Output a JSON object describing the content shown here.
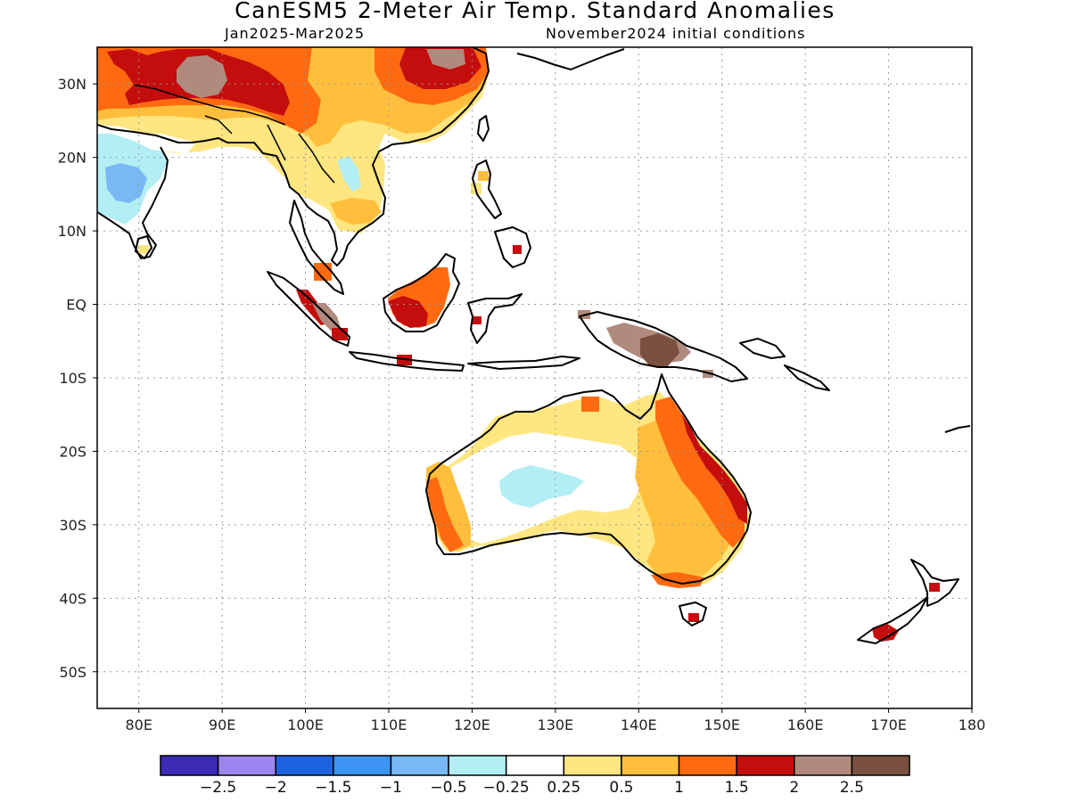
{
  "title": "CanESM5 2-Meter Air Temp. Standard Anomalies",
  "subtitle_left": "Jan2025-Mar2025",
  "subtitle_right": "November2024 initial conditions",
  "colors": {
    "c_lt_m25": "#3b2bb5",
    "c_m25_m2": "#9c85f0",
    "c_m2_m15": "#1f62e0",
    "c_m15_m1": "#3d93f2",
    "c_m1_m05": "#78b8f5",
    "c_m05_m025": "#b3eef5",
    "c_neutral": "#ffffff",
    "c_025_05": "#ffe680",
    "c_05_1": "#ffbf3c",
    "c_1_15": "#ff6a10",
    "c_15_2": "#c40d0d",
    "c_2_25": "#b08a7c",
    "c_gt_25": "#7a5040"
  },
  "chart_data": {
    "type": "heatmap",
    "variable": "2-Meter Air Temp. Standard Anomalies",
    "model": "CanESM5",
    "valid_period": "Jan2025-Mar2025",
    "initial_conditions": "November2024",
    "lon_range": [
      75,
      180
    ],
    "lat_range": [
      -55,
      35
    ],
    "lon_ticks": [
      80,
      90,
      100,
      110,
      120,
      130,
      140,
      150,
      160,
      170,
      180
    ],
    "lon_tick_labels": [
      "80E",
      "90E",
      "100E",
      "110E",
      "120E",
      "130E",
      "140E",
      "150E",
      "160E",
      "170E",
      "180"
    ],
    "lat_ticks": [
      30,
      20,
      10,
      0,
      -10,
      -20,
      -30,
      -40,
      -50
    ],
    "lat_tick_labels": [
      "30N",
      "20N",
      "10N",
      "EQ",
      "10S",
      "20S",
      "30S",
      "40S",
      "50S"
    ],
    "grid": true,
    "colorbar_levels": [
      -2.5,
      -2,
      -1.5,
      -1,
      -0.5,
      -0.25,
      0.25,
      0.5,
      1,
      1.5,
      2,
      2.5
    ],
    "colorbar_labels": [
      "-2.5",
      "-2",
      "-1.5",
      "-1",
      "-0.5",
      "-0.25",
      "0.25",
      "0.5",
      "1",
      "1.5",
      "2",
      "2.5"
    ],
    "colorbar_colors": [
      "#3b2bb5",
      "#9c85f0",
      "#1f62e0",
      "#3d93f2",
      "#78b8f5",
      "#b3eef5",
      "#ffffff",
      "#ffe680",
      "#ffbf3c",
      "#ff6a10",
      "#c40d0d",
      "#b08a7c",
      "#7a5040"
    ],
    "colorbar_placement": "bottom"
  }
}
